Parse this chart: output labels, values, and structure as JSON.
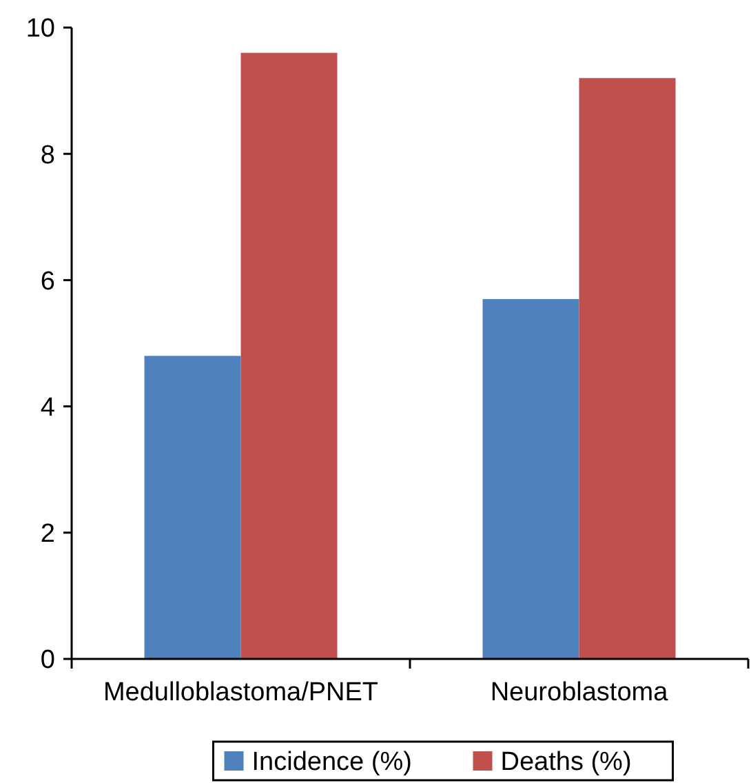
{
  "chart_data": {
    "type": "bar",
    "categories": [
      "Medulloblastoma/PNET",
      "Neuroblastoma"
    ],
    "series": [
      {
        "name": "Incidence (%)",
        "color": "#4f81bd",
        "values": [
          4.8,
          5.7
        ]
      },
      {
        "name": "Deaths (%)",
        "color": "#c0504d",
        "values": [
          9.6,
          9.2
        ]
      }
    ],
    "ylim": [
      0,
      10
    ],
    "yticks": [
      0,
      2,
      4,
      6,
      8,
      10
    ],
    "grid": false,
    "legend": "bottom"
  }
}
